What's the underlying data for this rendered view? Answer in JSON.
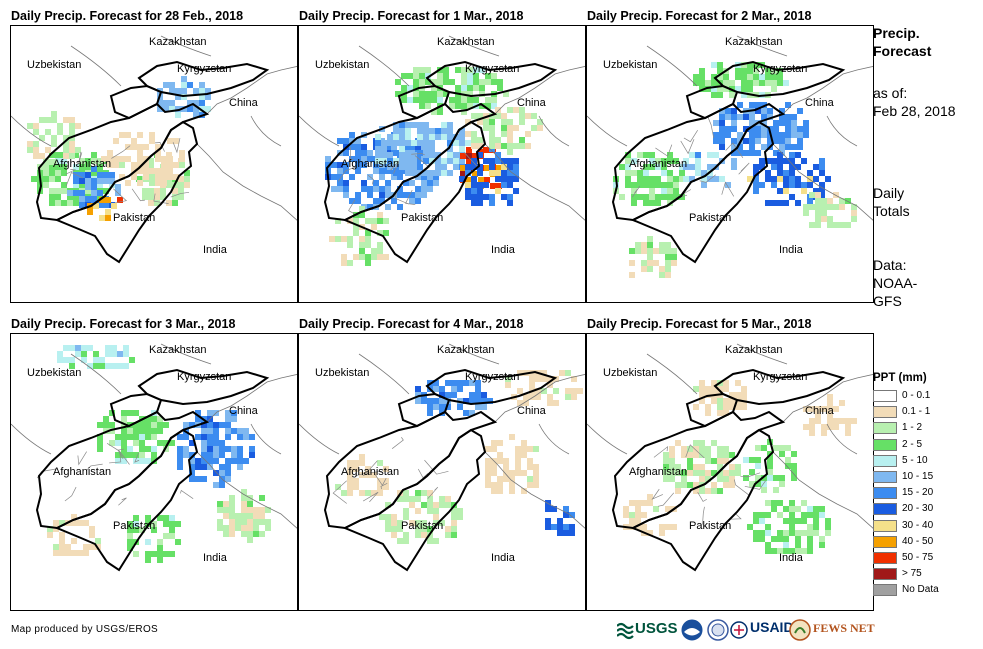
{
  "panels": [
    {
      "title": "Daily Precip. Forecast for 28 Feb., 2018"
    },
    {
      "title": "Daily Precip. Forecast for 1 Mar., 2018"
    },
    {
      "title": "Daily Precip. Forecast for 2 Mar., 2018"
    },
    {
      "title": "Daily Precip. Forecast for 3 Mar., 2018"
    },
    {
      "title": "Daily Precip. Forecast for 4 Mar., 2018"
    },
    {
      "title": "Daily Precip. Forecast for 5 Mar., 2018"
    }
  ],
  "map_labels": {
    "kazakhstan": "Kazakhstan",
    "uzbekistan": "Uzbekistan",
    "kyrgyzstan": "Kyrgyzstan",
    "china": "China",
    "afghanistan": "Afghanistan",
    "pakistan": "Pakistan",
    "india": "India"
  },
  "sidebar": {
    "title_line1": "Precip.",
    "title_line2": "Forecast",
    "asof_line1": "as of:",
    "asof_line2": "Feb 28, 2018",
    "totals_line1": "Daily",
    "totals_line2": "Totals",
    "data_line1": "Data:",
    "data_line2": "NOAA-",
    "data_line3": "GFS"
  },
  "legend": {
    "title": "PPT (mm)",
    "items": [
      {
        "label": "0 - 0.1",
        "color": "#ffffff"
      },
      {
        "label": "0.1 - 1",
        "color": "#f2dcb8"
      },
      {
        "label": "1 - 2",
        "color": "#b8f0b0"
      },
      {
        "label": "2 - 5",
        "color": "#66e066"
      },
      {
        "label": "5 - 10",
        "color": "#b8f0f0"
      },
      {
        "label": "10 - 15",
        "color": "#7fb8f0"
      },
      {
        "label": "15 - 20",
        "color": "#3c8cf0"
      },
      {
        "label": "20 - 30",
        "color": "#1a5ce0"
      },
      {
        "label": "30 - 40",
        "color": "#f5e08a"
      },
      {
        "label": "40 - 50",
        "color": "#f5a000"
      },
      {
        "label": "50 - 75",
        "color": "#f03000"
      },
      {
        "label": "> 75",
        "color": "#a01818"
      },
      {
        "label": "No Data",
        "color": "#a0a0a0"
      }
    ]
  },
  "footer": {
    "credit": "Map produced by USGS/EROS"
  },
  "logos": {
    "usgs": "USGS",
    "usaid": "USAID",
    "fewsnet": "FEWS NET"
  }
}
